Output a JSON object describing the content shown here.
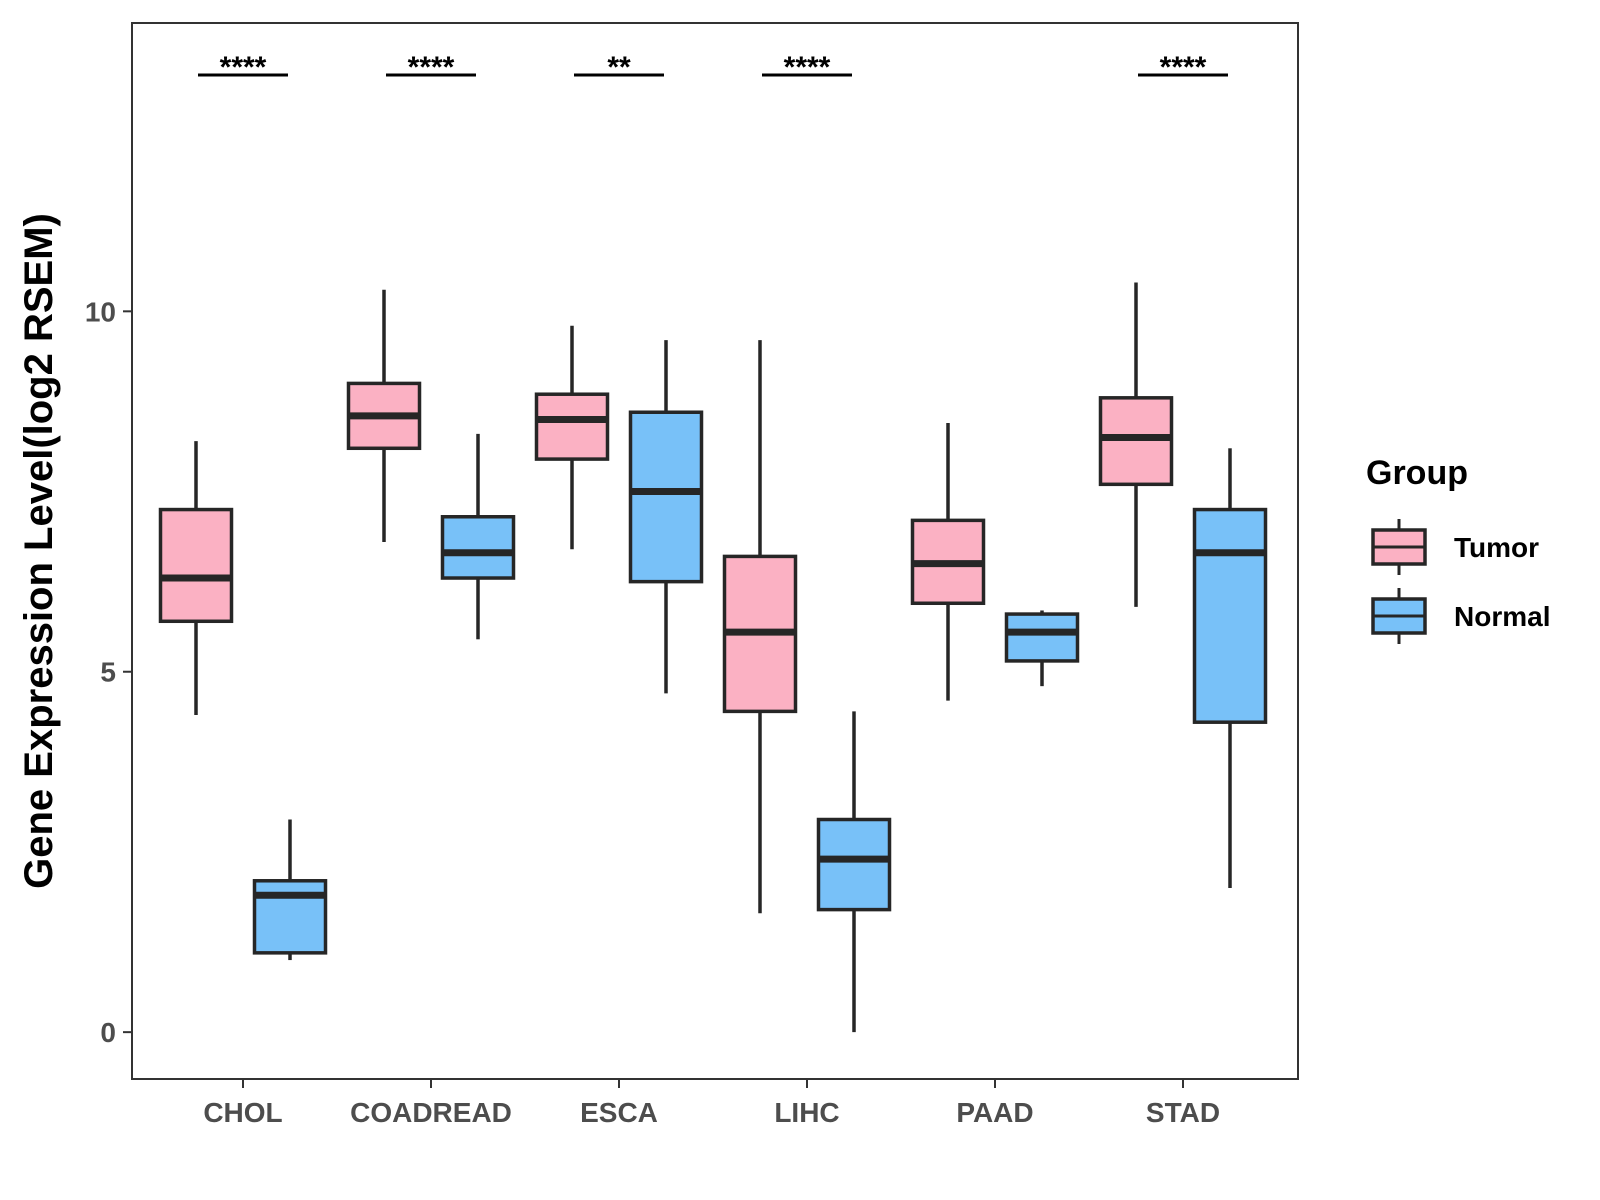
{
  "chart_data": {
    "type": "boxplot",
    "title": "",
    "xlabel": "",
    "ylabel": "Gene Expression Level(log2 RSEM)",
    "ylim": [
      -0.65,
      14.0
    ],
    "yticks": [
      0,
      5,
      10
    ],
    "grid": false,
    "legend_position": "right",
    "categories": [
      "CHOL",
      "COADREAD",
      "ESCA",
      "LIHC",
      "PAAD",
      "STAD"
    ],
    "legend": {
      "title": "Group"
    },
    "series": [
      {
        "name": "Tumor",
        "color": "#fbb1c3",
        "boxes": [
          {
            "min": 4.4,
            "q1": 5.7,
            "median": 6.3,
            "q3": 7.25,
            "max": 8.2
          },
          {
            "min": 6.8,
            "q1": 8.1,
            "median": 8.55,
            "q3": 9.0,
            "max": 10.3
          },
          {
            "min": 6.7,
            "q1": 7.95,
            "median": 8.5,
            "q3": 8.85,
            "max": 9.8
          },
          {
            "min": 1.65,
            "q1": 4.45,
            "median": 5.55,
            "q3": 6.6,
            "max": 9.6
          },
          {
            "min": 4.6,
            "q1": 5.95,
            "median": 6.5,
            "q3": 7.1,
            "max": 8.45
          },
          {
            "min": 5.9,
            "q1": 7.6,
            "median": 8.25,
            "q3": 8.8,
            "max": 10.4
          }
        ]
      },
      {
        "name": "Normal",
        "color": "#78c1f8",
        "boxes": [
          {
            "min": 1.0,
            "q1": 1.1,
            "median": 1.9,
            "q3": 2.1,
            "max": 2.95
          },
          {
            "min": 5.45,
            "q1": 6.3,
            "median": 6.65,
            "q3": 7.15,
            "max": 8.3
          },
          {
            "min": 4.7,
            "q1": 6.25,
            "median": 7.5,
            "q3": 8.6,
            "max": 9.6
          },
          {
            "min": 0.0,
            "q1": 1.7,
            "median": 2.4,
            "q3": 2.95,
            "max": 4.45
          },
          {
            "min": 4.8,
            "q1": 5.15,
            "median": 5.55,
            "q3": 5.8,
            "max": 5.85
          },
          {
            "min": 2.0,
            "q1": 4.3,
            "median": 6.65,
            "q3": 7.25,
            "max": 8.1
          }
        ]
      }
    ],
    "significance": [
      "****",
      "****",
      "**",
      "****",
      "",
      "****"
    ]
  }
}
